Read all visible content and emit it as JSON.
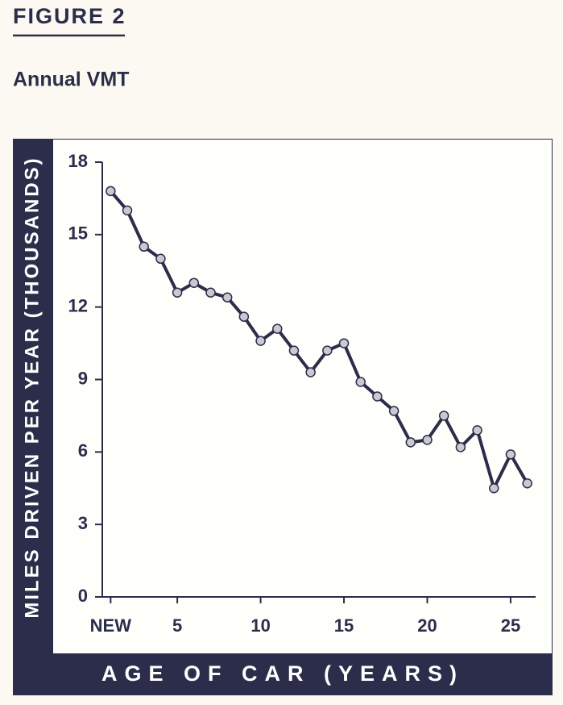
{
  "chart_data": {
    "type": "line",
    "figure_label": "FIGURE 2",
    "title": "Annual VMT",
    "x_label": "AGE OF CAR (YEARS)",
    "y_label": "MILES DRIVEN PER YEAR (THOUSANDS)",
    "x": [
      1,
      2,
      3,
      4,
      5,
      6,
      7,
      8,
      9,
      10,
      11,
      12,
      13,
      14,
      15,
      16,
      17,
      18,
      19,
      20,
      21,
      22,
      23,
      24,
      25,
      26
    ],
    "series": [
      {
        "color": "#2b2d4a",
        "values": [
          16.8,
          16.0,
          14.5,
          14.0,
          12.6,
          13.0,
          12.6,
          12.4,
          11.6,
          10.6,
          11.1,
          10.2,
          9.3,
          10.2,
          10.5,
          8.9,
          8.3,
          7.7,
          6.4,
          6.5,
          7.5,
          6.2,
          6.9,
          4.5,
          5.9,
          4.7
        ]
      }
    ],
    "xlim": [
      0.5,
      26.5
    ],
    "xticks": [
      {
        "value": 1,
        "label": "NEW"
      },
      5,
      10,
      15,
      20,
      25
    ],
    "ylim": [
      0,
      18
    ],
    "yticks": [
      0,
      3,
      6,
      9,
      12,
      15,
      18
    ]
  }
}
